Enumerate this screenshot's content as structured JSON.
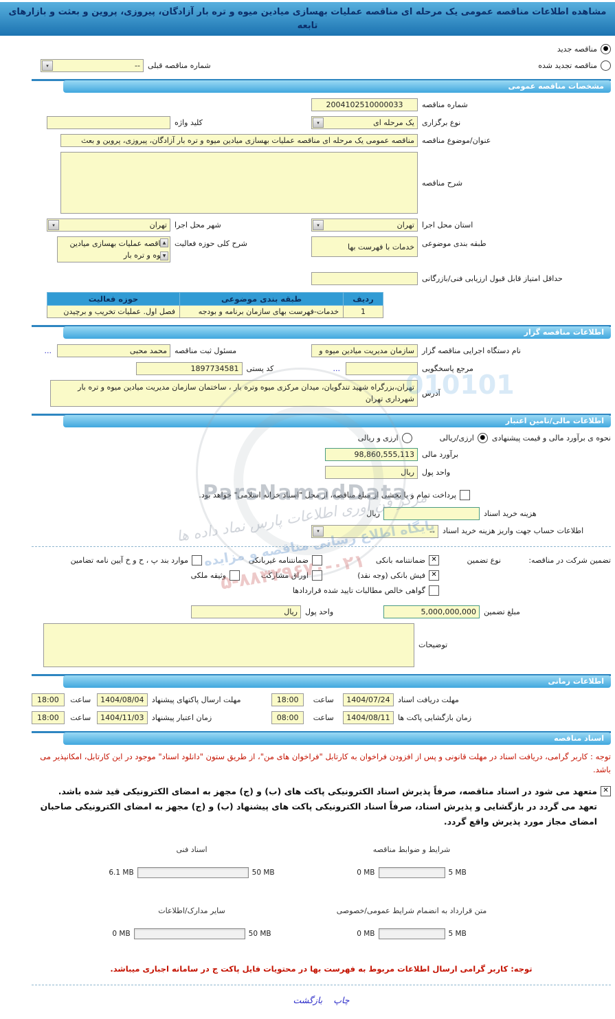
{
  "titlebar": {
    "title": "مشاهده اطلاعات مناقصه عمومی یک مرحله ای مناقصه عملیات بهسازی میادین میوه و تره بار آزادگان، پیروزی، پروین و بعثت و بازارهای تابعه"
  },
  "mode": {
    "new_label": "مناقصه جدید",
    "new_mark": "●",
    "renew_label": "مناقصه تجدید شده",
    "renew_mark": "",
    "prev_no_label": "شماره مناقصه قبلی",
    "prev_no_value": "--"
  },
  "sections": {
    "specs": "مشخصات مناقصه عمومی",
    "gozar": "اطلاعات مناقصه گزار",
    "finance": "اطلاعات مالی/تامین اعتبار",
    "time": "اطلاعات زمانی",
    "docs": "اسناد مناقصه"
  },
  "specs": {
    "tender_no_label": "شماره مناقصه",
    "tender_no": "2004102510000033",
    "holding_type_label": "نوع برگزاری",
    "holding_type": "یک مرحله ای",
    "keyword_label": "کلید واژه",
    "keyword": "",
    "subject_label": "عنوان/موضوع مناقصه",
    "subject": "مناقصه عمومی یک مرحله ای مناقصه عملیات بهسازی میادین میوه و تره بار آزادگان، پیروزی، پروین و بعث",
    "desc_label": "شرح مناقصه",
    "desc": "",
    "province_label": "استان محل اجرا",
    "province": "تهران",
    "city_label": "شهر محل اجرا",
    "city": "تهران",
    "category_label": "طبقه بندی موضوعی",
    "category": "خدمات با فهرست بها",
    "activity_label": "شرح کلی حوزه فعالیت",
    "activity": "مناقصه عملیات بهسازی میادین میوه و تره بار",
    "min_score_label": "حداقل امتیاز قابل قبول ارزیابی فنی/بازرگانی",
    "min_score": "",
    "table": {
      "headers": [
        "ردیف",
        "طبقه بندی موضوعی",
        "حوزه فعالیت"
      ],
      "rows": [
        [
          "1",
          "خدمات-فهرست بهای سازمان برنامه و بودجه",
          "فصل اول. عملیات تخریب و برچیدن"
        ]
      ]
    }
  },
  "gozar": {
    "agency_label": "نام دستگاه اجرایی مناقصه گزار",
    "agency": "سازمان مدیریت میادین میوه و",
    "registrar_label": "مسئول ثبت مناقصه",
    "registrar": "محمد محبی",
    "ellipsis": "...",
    "contact_label": "مرجع پاسخگویی",
    "contact": "",
    "postal_label": "کد پستی",
    "postal": "1897734581",
    "address_label": "آدرس",
    "address": "تهران،بزرگراه شهید تندگویان، میدان مرکزی میوه وتره بار ، ساختمان سازمان مدیریت میادین میوه و تره بار شهرداری تهران"
  },
  "finance": {
    "estimate_mode_label": "نحوه ی برآورد مالی و قیمت پیشنهادی",
    "mode_rial_label": "ارزی/ریالی",
    "mode_rial_mark": "●",
    "mode_both_label": "ارزی و ریالی",
    "mode_both_mark": "",
    "estimate_label": "برآورد مالی",
    "estimate": "98,860,555,113",
    "currency_label": "واحد پول",
    "currency": "ریال",
    "treasury_mark": "",
    "treasury_note": "پرداخت تمام و یا بخشی از مبلغ مناقصه، از محل \"اسناد خزانه اسلامی\" خواهد بود.",
    "doc_fee_label": "هزینه خرید اسناد",
    "doc_fee": "",
    "doc_fee_unit": "ریال",
    "account_label": "اطلاعات حساب جهت واریز هزینه خرید اسناد",
    "account": "--",
    "guarantee_title": "تضمین شرکت در مناقصه:",
    "guarantee_type_label": "نوع تضمین",
    "guarantee_types": [
      {
        "label": "ضمانتنامه بانکی",
        "mark": "✕"
      },
      {
        "label": "ضمانتنامه غیربانکی",
        "mark": ""
      },
      {
        "label": "موارد بند پ ، ح و خ آیین نامه تضامین",
        "mark": ""
      },
      {
        "label": "فیش بانکی (وجه نقد)",
        "mark": "✕"
      },
      {
        "label": "اوراق مشارکت",
        "mark": ""
      },
      {
        "label": "وثیقه ملکی",
        "mark": ""
      },
      {
        "label": "گواهی خالص مطالبات تایید شده قراردادها",
        "mark": ""
      }
    ],
    "guarantee_amount_label": "مبلغ تضمین",
    "guarantee_amount": "5,000,000,000",
    "g_currency_label": "واحد پول",
    "g_currency": "ریال",
    "notes_label": "توضیحات",
    "notes": ""
  },
  "time": {
    "hour_label": "ساعت",
    "doc_deadline_label": "مهلت دریافت اسناد",
    "doc_deadline_date": "1404/07/24",
    "doc_deadline_time": "18:00",
    "submit_deadline_label": "مهلت ارسال پاکتهای پیشنهاد",
    "submit_deadline_date": "1404/08/04",
    "submit_deadline_time": "18:00",
    "opening_label": "زمان بازگشایی پاکت ها",
    "opening_date": "1404/08/11",
    "opening_time": "08:00",
    "validity_label": "زمان اعتبار پیشنهاد",
    "validity_date": "1404/11/03",
    "validity_time": "18:00"
  },
  "docs": {
    "note1": "توجه : کاربر گرامی، دریافت اسناد در مهلت قانونی و پس از افزودن فراخوان به کارتابل \"فراخوان های من\"، از طریق ستون \"دانلود اسناد\" موجود در این کارتابل، امکانپذیر می باشد.",
    "commit_mark": "✕",
    "commit_text": "متعهد می شود در اسناد مناقصه، صرفاً پذیرش اسناد الکترونیکی پاکت های (ب) و (ج) مجهز به امضای الکترونیکی قید شده باشد. تعهد می گردد در بازگشایی و پذیرش اسناد، صرفاً اسناد الکترونیکی پاکت های پیشنهاد (ب) و (ج) مجهز به امضای الکترونیکی صاحبان امضای مجاز مورد پذیرش واقع گردد.",
    "uploads": [
      {
        "label": "شرایط و ضوابط مناقصه",
        "current": "0 MB",
        "max": "5 MB",
        "fill_pct": 0,
        "size": "small"
      },
      {
        "label": "اسناد فنی",
        "current": "6.1 MB",
        "max": "50 MB",
        "fill_pct": 12,
        "size": "large"
      },
      {
        "label": "متن قرارداد به انضمام شرایط عمومی/خصوصی",
        "current": "0 MB",
        "max": "5 MB",
        "fill_pct": 0,
        "size": "small"
      },
      {
        "label": "سایر مدارک/اطلاعات",
        "current": "0 MB",
        "max": "50 MB",
        "fill_pct": 0,
        "size": "large"
      }
    ],
    "note2": "توجه: کاربر گرامی ارسال اطلاعات مربوط به فهرست بها در محتویات فایل پاکت ج در سامانه اجباری میباشد."
  },
  "footer": {
    "print": "چاپ",
    "back": "بازگشت"
  },
  "watermark": {
    "brand": "ParsNamadData",
    "digits": "010101",
    "line1": "مرکز فن آوری اطلاعات پارس نماد داده ها",
    "line2": "پایگاه اطلاع رسانی مناقصه و مزایده",
    "phone": "۵-۸۸۳۲۹۶۷۰-۰۲۱"
  },
  "colors": {
    "accent_blue": "#319bd4",
    "header_gradient_top": "#9bd9f4",
    "header_gradient_bottom": "#41a7de",
    "field_yellow": "#fafac8",
    "green_border": "#4b9b84",
    "note_red": "#c41200",
    "link_blue": "#2a2ac8",
    "progress_green": "#8dc63f"
  }
}
